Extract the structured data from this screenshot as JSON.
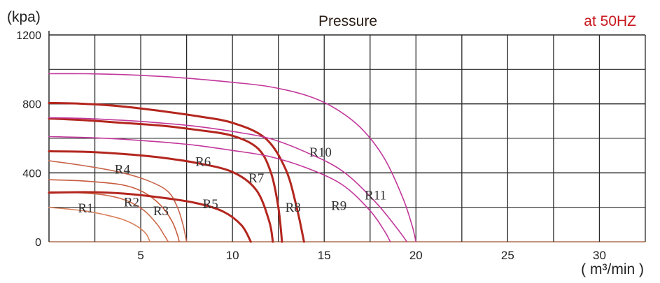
{
  "chart_data": {
    "type": "line",
    "title": "Pressure",
    "subtitle": "at 50HZ",
    "ylabel": "(kpa)",
    "xlabel": "( m³/min )",
    "xlim": [
      0,
      32.5
    ],
    "ylim": [
      0,
      1200
    ],
    "x_ticks": [
      5,
      10,
      15,
      20,
      25,
      30
    ],
    "y_ticks": [
      0,
      400,
      800,
      1200
    ],
    "y_tick_labels": [
      "0",
      "400",
      "800",
      "1200"
    ],
    "grid": true,
    "colors": {
      "title": "#2b1d14",
      "subtitle": "#c8161d",
      "grid": "#2a2a2a",
      "zero": "#a0522d"
    },
    "series": [
      {
        "name": "R1",
        "color": "#d9805c",
        "width": 1.6,
        "label_at": [
          2.0,
          170
        ],
        "points": [
          [
            0,
            200
          ],
          [
            1,
            190
          ],
          [
            2,
            178
          ],
          [
            3,
            158
          ],
          [
            4,
            130
          ],
          [
            4.8,
            90
          ],
          [
            5.3,
            45
          ],
          [
            5.5,
            0
          ]
        ]
      },
      {
        "name": "R2",
        "color": "#cc6a4a",
        "width": 1.6,
        "label_at": [
          4.5,
          205
        ],
        "points": [
          [
            0,
            290
          ],
          [
            1.5,
            285
          ],
          [
            3,
            272
          ],
          [
            4.2,
            240
          ],
          [
            5.2,
            180
          ],
          [
            5.9,
            100
          ],
          [
            6.3,
            35
          ],
          [
            6.5,
            0
          ]
        ]
      },
      {
        "name": "R3",
        "color": "#c75a3c",
        "width": 1.6,
        "label_at": [
          6.1,
          155
        ],
        "points": [
          [
            0,
            360
          ],
          [
            2,
            352
          ],
          [
            4,
            330
          ],
          [
            5.2,
            285
          ],
          [
            6.1,
            210
          ],
          [
            6.7,
            120
          ],
          [
            7.0,
            40
          ],
          [
            7.1,
            0
          ]
        ]
      },
      {
        "name": "R4",
        "color": "#c8664c",
        "width": 1.6,
        "label_at": [
          4.0,
          395
        ],
        "points": [
          [
            0,
            470
          ],
          [
            2,
            440
          ],
          [
            4,
            400
          ],
          [
            5.5,
            350
          ],
          [
            6.5,
            290
          ],
          [
            7.0,
            200
          ],
          [
            7.3,
            100
          ],
          [
            7.5,
            0
          ]
        ]
      },
      {
        "name": "R5",
        "color": "#b3261e",
        "width": 3.0,
        "label_at": [
          8.8,
          195
        ],
        "points": [
          [
            0,
            285
          ],
          [
            2,
            288
          ],
          [
            4,
            280
          ],
          [
            6,
            258
          ],
          [
            8,
            225
          ],
          [
            9.5,
            175
          ],
          [
            10.5,
            95
          ],
          [
            11.0,
            0
          ]
        ]
      },
      {
        "name": "R6",
        "color": "#b3261e",
        "width": 3.0,
        "label_at": [
          8.4,
          440
        ],
        "points": [
          [
            0,
            525
          ],
          [
            2,
            522
          ],
          [
            4,
            510
          ],
          [
            6,
            490
          ],
          [
            8,
            458
          ],
          [
            10,
            405
          ],
          [
            11.3,
            300
          ],
          [
            12.0,
            120
          ],
          [
            12.2,
            0
          ]
        ]
      },
      {
        "name": "R7",
        "color": "#b3261e",
        "width": 3.0,
        "label_at": [
          11.3,
          345
        ],
        "points": [
          [
            0,
            715
          ],
          [
            2,
            705
          ],
          [
            4,
            690
          ],
          [
            6,
            675
          ],
          [
            8,
            650
          ],
          [
            10,
            615
          ],
          [
            11.4,
            540
          ],
          [
            12.1,
            400
          ],
          [
            12.5,
            200
          ],
          [
            12.7,
            0
          ]
        ]
      },
      {
        "name": "R8",
        "color": "#b3261e",
        "width": 3.0,
        "label_at": [
          13.3,
          175
        ],
        "points": [
          [
            0,
            805
          ],
          [
            2,
            800
          ],
          [
            4,
            785
          ],
          [
            6,
            760
          ],
          [
            8,
            730
          ],
          [
            10,
            690
          ],
          [
            11.8,
            600
          ],
          [
            12.9,
            420
          ],
          [
            13.5,
            200
          ],
          [
            13.9,
            0
          ]
        ]
      },
      {
        "name": "R9",
        "color": "#c2379a",
        "width": 1.6,
        "label_at": [
          15.8,
          185
        ],
        "points": [
          [
            0,
            610
          ],
          [
            2,
            605
          ],
          [
            4,
            595
          ],
          [
            6,
            580
          ],
          [
            8,
            560
          ],
          [
            10,
            530
          ],
          [
            12,
            495
          ],
          [
            14,
            430
          ],
          [
            16,
            330
          ],
          [
            17.5,
            180
          ],
          [
            18.3,
            60
          ],
          [
            18.6,
            0
          ]
        ]
      },
      {
        "name": "R10",
        "color": "#c2379a",
        "width": 1.6,
        "label_at": [
          14.8,
          495
        ],
        "points": [
          [
            0,
            720
          ],
          [
            2,
            715
          ],
          [
            4,
            705
          ],
          [
            6,
            690
          ],
          [
            8,
            670
          ],
          [
            10,
            640
          ],
          [
            12,
            600
          ],
          [
            14,
            520
          ],
          [
            16,
            410
          ],
          [
            17.8,
            230
          ],
          [
            19.1,
            60
          ],
          [
            19.5,
            0
          ]
        ]
      },
      {
        "name": "R11",
        "color": "#c2379a",
        "width": 1.6,
        "label_at": [
          17.8,
          245
        ],
        "points": [
          [
            0,
            975
          ],
          [
            2,
            975
          ],
          [
            4,
            970
          ],
          [
            6,
            960
          ],
          [
            8,
            945
          ],
          [
            10,
            925
          ],
          [
            12,
            900
          ],
          [
            14,
            850
          ],
          [
            15.5,
            780
          ],
          [
            17,
            660
          ],
          [
            18.3,
            480
          ],
          [
            19.3,
            250
          ],
          [
            19.8,
            90
          ],
          [
            20.0,
            0
          ]
        ]
      }
    ]
  }
}
